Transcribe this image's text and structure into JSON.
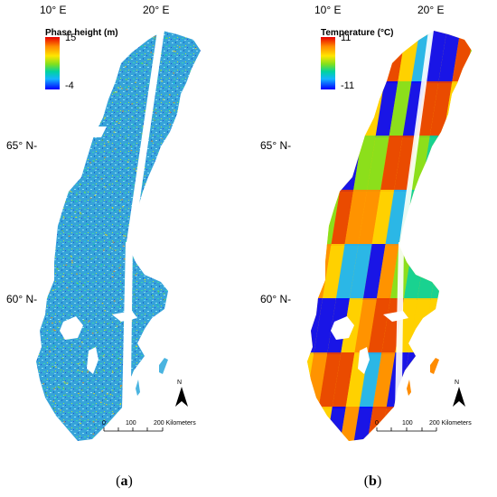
{
  "panels": [
    {
      "id": "a",
      "legend": {
        "title": "Phase height (m)",
        "max": "15",
        "min": "-4"
      },
      "lon_labels": [
        "10° E",
        "20° E"
      ],
      "lat_labels": [
        "65° N-",
        "60° N-"
      ],
      "north": "N",
      "scale": {
        "ticks": [
          "0",
          "100",
          "200 Kilometers"
        ]
      },
      "caption": {
        "open": "(",
        "letter": "a",
        "close": ")"
      }
    },
    {
      "id": "b",
      "legend": {
        "title": "Temperature (°C)",
        "max": "11",
        "min": "-11"
      },
      "lon_labels": [
        "10° E",
        "20° E"
      ],
      "lat_labels": [
        "65° N-",
        "60° N-"
      ],
      "north": "N",
      "scale": {
        "ticks": [
          "0",
          "100",
          "200 Kilometers"
        ]
      },
      "caption": {
        "open": "(",
        "letter": "b",
        "close": ")"
      }
    }
  ],
  "colors": {
    "ramp": [
      "#0000ff",
      "#14b4ff",
      "#00d2a0",
      "#7fe01e",
      "#ffe600",
      "#ff8c00",
      "#e80000"
    ],
    "phase_base": "#3aa6dc"
  }
}
